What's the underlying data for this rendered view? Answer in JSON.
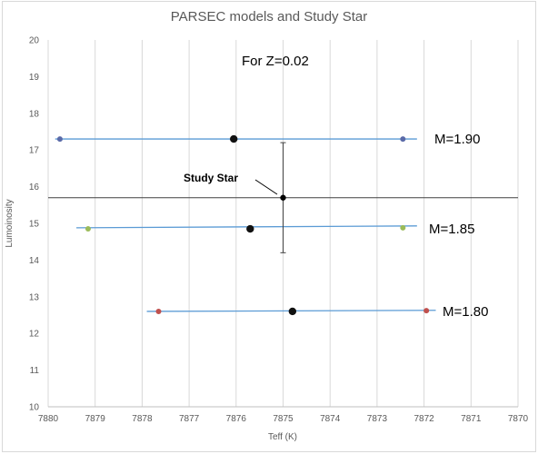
{
  "chart_data": {
    "type": "scatter",
    "title": "PARSEC models and Study Star",
    "xlabel": "Teff (K)",
    "ylabel": "Lumoinosity",
    "xlim": [
      7870,
      7880
    ],
    "ylim": [
      10,
      20
    ],
    "x_reversed": true,
    "x_ticks": [
      7880,
      7879,
      7878,
      7877,
      7876,
      7875,
      7874,
      7873,
      7872,
      7871,
      7870
    ],
    "y_ticks": [
      10,
      11,
      12,
      13,
      14,
      15,
      16,
      17,
      18,
      19,
      20
    ],
    "grid": "vertical",
    "annotations": {
      "metallicity": "For Z=0.02",
      "study_star": "Study Star",
      "m190": "M=1.90",
      "m185": "M=1.85",
      "m180": "M=1.80"
    },
    "model_tracks": [
      {
        "mass_label": "M=1.90",
        "line_x": [
          7879.85,
          7872.15
        ],
        "line_y": [
          17.3,
          17.3
        ],
        "line_color": "#5b9bd5",
        "points": [
          {
            "x": 7879.75,
            "y": 17.3,
            "color": "#5a6aa8",
            "size": "small"
          },
          {
            "x": 7876.05,
            "y": 17.3,
            "color": "#111111",
            "size": "large"
          },
          {
            "x": 7872.45,
            "y": 17.3,
            "color": "#5a6aa8",
            "size": "small"
          }
        ]
      },
      {
        "mass_label": "M=1.85",
        "line_x": [
          7879.4,
          7872.15
        ],
        "line_y": [
          14.88,
          14.93
        ],
        "line_color": "#5b9bd5",
        "points": [
          {
            "x": 7879.15,
            "y": 14.85,
            "color": "#9bbb59",
            "size": "small"
          },
          {
            "x": 7875.7,
            "y": 14.85,
            "color": "#111111",
            "size": "large"
          },
          {
            "x": 7872.45,
            "y": 14.88,
            "color": "#9bbb59",
            "size": "small"
          }
        ]
      },
      {
        "mass_label": "M=1.80",
        "line_x": [
          7877.9,
          7871.75
        ],
        "line_y": [
          12.6,
          12.63
        ],
        "line_color": "#5b9bd5",
        "points": [
          {
            "x": 7877.65,
            "y": 12.6,
            "color": "#c0504d",
            "size": "small"
          },
          {
            "x": 7874.8,
            "y": 12.6,
            "color": "#111111",
            "size": "large"
          },
          {
            "x": 7871.95,
            "y": 12.62,
            "color": "#c0504d",
            "size": "small"
          }
        ]
      }
    ],
    "study_star": {
      "x": 7875,
      "y": 15.7,
      "y_err_low": 14.2,
      "y_err_high": 17.2,
      "horizontal_line_y": 15.7
    }
  }
}
